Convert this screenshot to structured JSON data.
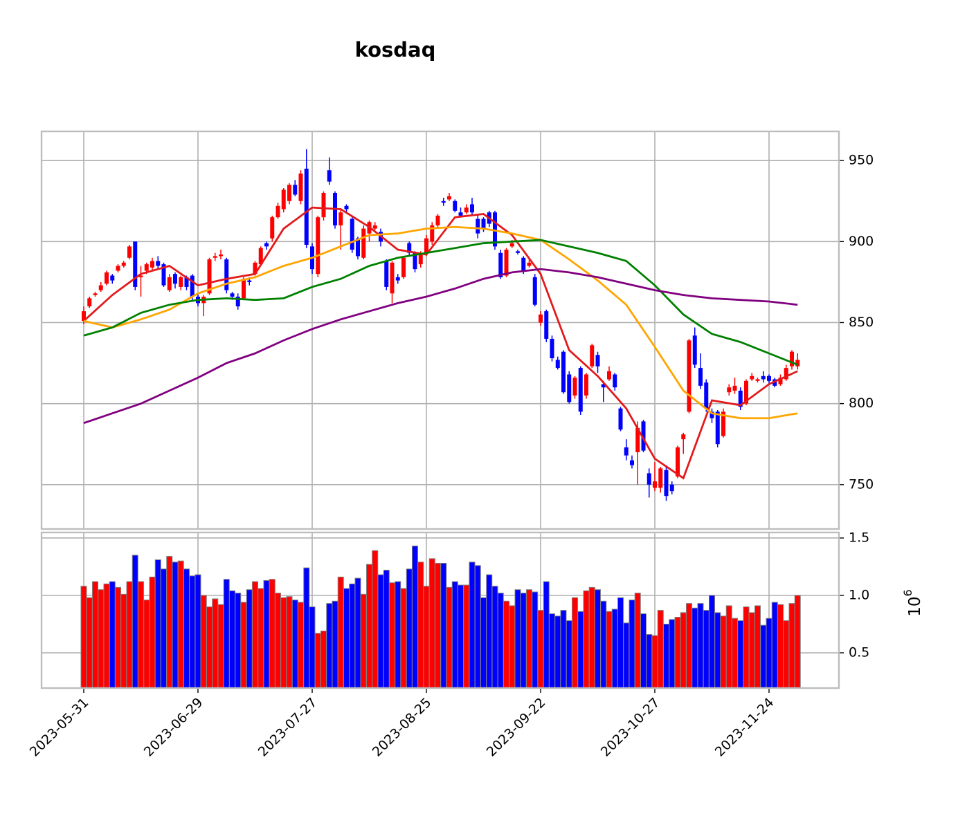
{
  "chart_data": {
    "type": "candlestick",
    "title": "kosdaq",
    "categories": [
      "2023-05-31",
      null,
      null,
      null,
      null,
      null,
      null,
      null,
      null,
      null,
      null,
      null,
      null,
      null,
      null,
      null,
      null,
      null,
      null,
      null,
      "2023-06-29",
      null,
      null,
      null,
      null,
      null,
      null,
      null,
      null,
      null,
      null,
      null,
      null,
      null,
      null,
      null,
      null,
      null,
      null,
      null,
      "2023-07-27",
      null,
      null,
      null,
      null,
      null,
      null,
      null,
      null,
      null,
      null,
      null,
      null,
      null,
      null,
      null,
      null,
      null,
      null,
      null,
      "2023-08-25",
      null,
      null,
      null,
      null,
      null,
      null,
      null,
      null,
      null,
      null,
      null,
      null,
      null,
      null,
      null,
      null,
      null,
      null,
      null,
      "2023-09-22",
      null,
      null,
      null,
      null,
      null,
      null,
      null,
      null,
      null,
      null,
      null,
      null,
      null,
      null,
      null,
      null,
      null,
      null,
      null,
      "2023-10-27",
      null,
      null,
      null,
      null,
      null,
      null,
      null,
      null,
      null,
      null,
      null,
      null,
      null,
      null,
      null,
      null,
      null,
      null,
      null,
      "2023-11-24",
      null,
      null,
      null,
      null,
      null
    ],
    "open": [
      851,
      860,
      867,
      870,
      874,
      879,
      882,
      885,
      890,
      900,
      878,
      882,
      884,
      888,
      886,
      870,
      880,
      872,
      878,
      879,
      866,
      862,
      868,
      890,
      891,
      889,
      868,
      866,
      865,
      876,
      880,
      886,
      899,
      902,
      915,
      920,
      925,
      935,
      925,
      945,
      897,
      880,
      915,
      944,
      930,
      910,
      922,
      914,
      902,
      890,
      905,
      908,
      906,
      888,
      868,
      878,
      878,
      899,
      893,
      886,
      893,
      900,
      910,
      925,
      926,
      925,
      918,
      918,
      923,
      914,
      914,
      918,
      918,
      893,
      879,
      897,
      894,
      890,
      885,
      878,
      850,
      857,
      840,
      827,
      832,
      818,
      805,
      822,
      805,
      823,
      830,
      812,
      815,
      818,
      797,
      773,
      765,
      770,
      789,
      757,
      748,
      748,
      759,
      750,
      755,
      778,
      795,
      842,
      822,
      813,
      795,
      795,
      780,
      807,
      808,
      808,
      800,
      815,
      814,
      817,
      817,
      815,
      812,
      815,
      823,
      823
    ],
    "high": [
      860,
      866,
      869,
      875,
      882,
      880,
      886,
      888,
      898,
      900,
      885,
      887,
      890,
      891,
      887,
      880,
      881,
      879,
      879,
      880,
      868,
      867,
      890,
      893,
      895,
      890,
      869,
      868,
      878,
      878,
      888,
      897,
      900,
      916,
      924,
      933,
      936,
      938,
      944,
      957,
      899,
      916,
      931,
      952,
      931,
      920,
      923,
      915,
      903,
      910,
      913,
      912,
      908,
      889,
      888,
      880,
      891,
      900,
      894,
      894,
      904,
      912,
      917,
      927,
      930,
      926,
      921,
      923,
      927,
      917,
      915,
      919,
      919,
      895,
      896,
      901,
      895,
      891,
      889,
      880,
      857,
      858,
      842,
      829,
      833,
      820,
      817,
      823,
      819,
      837,
      832,
      814,
      823,
      819,
      798,
      778,
      768,
      789,
      790,
      760,
      764,
      761,
      762,
      752,
      774,
      782,
      840,
      847,
      831,
      815,
      797,
      796,
      797,
      812,
      816,
      810,
      815,
      819,
      816,
      820,
      818,
      816,
      818,
      824,
      833,
      831
    ],
    "low": [
      849,
      859,
      866,
      869,
      873,
      874,
      881,
      884,
      889,
      870,
      866,
      880,
      882,
      883,
      872,
      869,
      871,
      870,
      870,
      864,
      860,
      854,
      867,
      888,
      889,
      868,
      864,
      858,
      864,
      873,
      879,
      885,
      895,
      900,
      914,
      918,
      923,
      928,
      923,
      896,
      880,
      878,
      913,
      935,
      908,
      895,
      918,
      893,
      889,
      889,
      900,
      907,
      897,
      870,
      862,
      874,
      877,
      891,
      881,
      884,
      891,
      898,
      908,
      922,
      925,
      918,
      915,
      917,
      916,
      902,
      906,
      909,
      895,
      877,
      878,
      896,
      892,
      880,
      884,
      860,
      848,
      838,
      826,
      821,
      806,
      800,
      803,
      793,
      803,
      822,
      819,
      801,
      814,
      808,
      783,
      765,
      760,
      750,
      770,
      742,
      746,
      745,
      740,
      744,
      754,
      769,
      794,
      822,
      809,
      795,
      788,
      773,
      779,
      805,
      806,
      796,
      799,
      814,
      813,
      813,
      812,
      810,
      811,
      814,
      821,
      821
    ],
    "close": [
      857,
      865,
      868,
      873,
      881,
      876,
      885,
      887,
      897,
      872,
      879,
      886,
      888,
      885,
      873,
      878,
      874,
      878,
      872,
      866,
      862,
      866,
      889,
      891,
      892,
      870,
      866,
      860,
      877,
      875,
      887,
      896,
      897,
      915,
      922,
      932,
      935,
      929,
      942,
      898,
      883,
      915,
      930,
      937,
      910,
      918,
      920,
      895,
      891,
      908,
      912,
      910,
      900,
      872,
      887,
      876,
      890,
      893,
      883,
      893,
      902,
      910,
      916,
      924,
      928,
      919,
      916,
      921,
      918,
      905,
      908,
      911,
      897,
      878,
      895,
      899,
      893,
      882,
      887,
      861,
      855,
      840,
      828,
      822,
      807,
      801,
      816,
      795,
      818,
      836,
      823,
      810,
      820,
      810,
      784,
      768,
      762,
      785,
      771,
      750,
      752,
      760,
      743,
      746,
      773,
      781,
      839,
      824,
      811,
      797,
      791,
      775,
      795,
      810,
      811,
      798,
      814,
      817,
      815,
      815,
      814,
      811,
      816,
      822,
      832,
      827
    ],
    "up_color": "#ff0000",
    "down_color": "#0000ff",
    "ylim": [
      722.6,
      968
    ],
    "yticks": [
      750,
      800,
      850,
      900,
      950
    ],
    "grid": true,
    "moving_averages": {
      "x": [
        0,
        5,
        10,
        15,
        20,
        25,
        30,
        35,
        40,
        45,
        50,
        55,
        60,
        65,
        70,
        75,
        80,
        85,
        90,
        95,
        100,
        105,
        110,
        115,
        120,
        125
      ],
      "series": [
        {
          "color": "#e31a1c",
          "values": [
            851,
            867,
            880,
            885,
            873,
            877,
            880,
            908,
            921,
            920,
            909,
            895,
            892,
            915,
            917,
            904,
            880,
            833,
            817,
            797,
            766,
            754,
            802,
            799,
            812,
            820
          ]
        },
        {
          "color": "#ffa500",
          "values": [
            851,
            847,
            852,
            858,
            868,
            874,
            878,
            885,
            890,
            897,
            904,
            905,
            908,
            909,
            908,
            905,
            901,
            889,
            876,
            861,
            835,
            808,
            794,
            791,
            791,
            794
          ]
        },
        {
          "color": "#008000",
          "values": [
            842,
            847,
            856,
            861,
            864,
            865,
            864,
            865,
            872,
            877,
            885,
            890,
            893,
            896,
            899,
            900,
            901,
            897,
            893,
            888,
            873,
            855,
            843,
            838,
            831,
            824
          ]
        },
        {
          "color": "#800080",
          "values": [
            788,
            794,
            800,
            808,
            816,
            825,
            831,
            839,
            846,
            852,
            857,
            862,
            866,
            871,
            877,
            881,
            883,
            881,
            878,
            874,
            870,
            867,
            865,
            864,
            863,
            861
          ]
        }
      ]
    },
    "volume": {
      "values": [
        1.08,
        0.98,
        1.12,
        1.05,
        1.1,
        1.12,
        1.07,
        1.01,
        1.12,
        1.35,
        1.12,
        0.96,
        1.16,
        1.31,
        1.23,
        1.34,
        1.29,
        1.3,
        1.23,
        1.17,
        1.18,
        1.0,
        0.9,
        0.97,
        0.92,
        1.14,
        1.04,
        1.02,
        0.94,
        1.05,
        1.12,
        1.06,
        1.13,
        1.14,
        1.02,
        0.98,
        0.99,
        0.96,
        0.94,
        1.24,
        0.9,
        0.67,
        0.69,
        0.93,
        0.95,
        1.16,
        1.06,
        1.1,
        1.15,
        1.01,
        1.27,
        1.39,
        1.18,
        1.22,
        1.11,
        1.12,
        1.06,
        1.23,
        1.43,
        1.29,
        1.08,
        1.32,
        1.28,
        1.28,
        1.07,
        1.12,
        1.09,
        1.09,
        1.29,
        1.26,
        0.98,
        1.18,
        1.08,
        1.02,
        0.95,
        0.91,
        1.05,
        1.02,
        1.05,
        1.03,
        0.87,
        1.12,
        0.84,
        0.82,
        0.87,
        0.78,
        0.98,
        0.86,
        1.04,
        1.07,
        1.05,
        0.95,
        0.86,
        0.88,
        0.98,
        0.76,
        0.96,
        1.02,
        0.84,
        0.66,
        0.65,
        0.87,
        0.75,
        0.79,
        0.81,
        0.85,
        0.93,
        0.89,
        0.93,
        0.87,
        1.0,
        0.85,
        0.82,
        0.91,
        0.8,
        0.78,
        0.9,
        0.85,
        0.91,
        0.74,
        0.8,
        0.94,
        0.92,
        0.78,
        0.93,
        1.0
      ],
      "ylim": [
        0.193,
        1.548
      ],
      "yticks": [
        0.5,
        {
          "value": 1,
          "label": "1.0"
        },
        1.5
      ],
      "offset_label": {
        "base": "10",
        "exponent": "6"
      },
      "edge_color": "#808080"
    }
  }
}
